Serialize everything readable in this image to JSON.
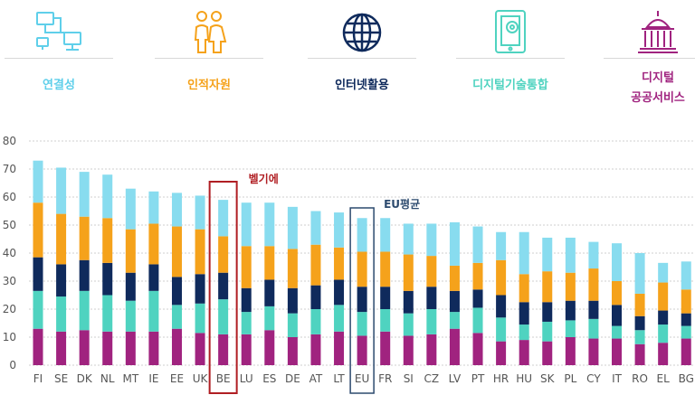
{
  "legend": {
    "items": [
      {
        "label": "연결성",
        "color": "#5fcfea",
        "icon": "network-icon"
      },
      {
        "label": "인적자원",
        "color": "#f5a21b",
        "icon": "people-icon"
      },
      {
        "label": "인터넷활용",
        "color": "#0f2a5c",
        "icon": "globe-icon"
      },
      {
        "label": "디지털기술통합",
        "color": "#4fd3c0",
        "icon": "tablet-gear-icon"
      },
      {
        "label_line1": "디지털",
        "label_line2": "공공서비스",
        "color": "#a0237f",
        "icon": "government-building-icon"
      }
    ]
  },
  "annotations": {
    "be_label": "벨기에",
    "eu_label": "EU평균",
    "be_color": "#b01e23",
    "eu_color": "#2c4a6e"
  },
  "chart_data": {
    "type": "bar",
    "stacked": true,
    "categories": [
      "FI",
      "SE",
      "DK",
      "NL",
      "MT",
      "IE",
      "EE",
      "UK",
      "BE",
      "LU",
      "ES",
      "DE",
      "AT",
      "LT",
      "EU",
      "FR",
      "SI",
      "CZ",
      "LV",
      "PT",
      "HR",
      "HU",
      "SK",
      "PL",
      "CY",
      "IT",
      "RO",
      "EL",
      "BG"
    ],
    "ylim": [
      0,
      80
    ],
    "yticks": [
      0,
      10,
      20,
      30,
      40,
      50,
      60,
      70,
      80
    ],
    "grid": true,
    "series": [
      {
        "color": "#a0237f",
        "values": [
          13.0,
          12.0,
          12.5,
          12.0,
          12.0,
          12.0,
          13.0,
          11.5,
          11.0,
          11.0,
          12.5,
          10.0,
          11.0,
          12.0,
          10.5,
          12.0,
          10.5,
          11.0,
          13.0,
          11.5,
          8.5,
          9.0,
          8.5,
          10.0,
          9.5,
          9.5,
          7.5,
          8.0,
          9.5
        ]
      },
      {
        "color": "#4fd3c0",
        "values": [
          13.5,
          12.5,
          14.0,
          13.0,
          11.0,
          14.5,
          8.5,
          10.5,
          12.5,
          8.0,
          8.5,
          8.5,
          9.0,
          9.5,
          8.5,
          8.0,
          8.0,
          9.0,
          6.0,
          9.0,
          8.5,
          5.5,
          7.0,
          6.0,
          7.0,
          4.5,
          5.0,
          6.5,
          4.5
        ]
      },
      {
        "color": "#0f2a5c",
        "values": [
          12.0,
          11.5,
          11.0,
          11.5,
          10.0,
          9.5,
          10.0,
          10.5,
          9.5,
          8.5,
          9.5,
          9.0,
          8.5,
          9.0,
          9.0,
          8.0,
          8.0,
          8.0,
          7.5,
          6.5,
          8.0,
          8.0,
          7.0,
          7.0,
          6.5,
          7.5,
          5.0,
          5.0,
          4.5
        ]
      },
      {
        "color": "#f5a21b",
        "values": [
          19.5,
          18.0,
          15.5,
          16.0,
          15.5,
          14.5,
          18.0,
          16.0,
          13.0,
          15.0,
          12.0,
          14.0,
          14.5,
          11.5,
          12.5,
          12.5,
          13.0,
          11.0,
          9.0,
          9.5,
          12.5,
          10.0,
          11.0,
          10.0,
          11.5,
          8.5,
          8.0,
          10.0,
          8.5
        ]
      },
      {
        "color": "#88dcef",
        "values": [
          15.0,
          16.5,
          16.0,
          15.5,
          14.5,
          11.5,
          12.0,
          12.0,
          13.0,
          15.5,
          15.5,
          15.0,
          12.0,
          12.5,
          12.0,
          12.0,
          11.0,
          11.5,
          15.5,
          13.0,
          10.0,
          15.0,
          12.0,
          12.5,
          9.5,
          13.5,
          14.5,
          7.0,
          10.0
        ]
      }
    ]
  }
}
